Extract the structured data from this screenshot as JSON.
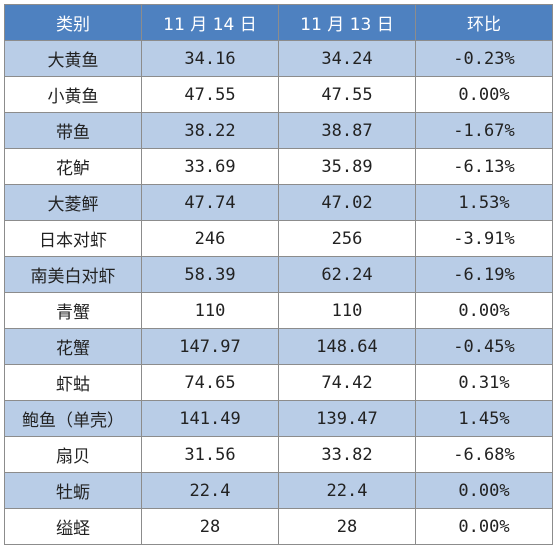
{
  "table": {
    "headers": [
      "类别",
      "11 月 14 日",
      "11 月 13 日",
      "环比"
    ],
    "rows": [
      {
        "category": "大黄鱼",
        "nov14": "34.16",
        "nov13": "34.24",
        "change": "-0.23%"
      },
      {
        "category": "小黄鱼",
        "nov14": "47.55",
        "nov13": "47.55",
        "change": "0.00%"
      },
      {
        "category": "带鱼",
        "nov14": "38.22",
        "nov13": "38.87",
        "change": "-1.67%"
      },
      {
        "category": "花鲈",
        "nov14": "33.69",
        "nov13": "35.89",
        "change": "-6.13%"
      },
      {
        "category": "大菱鲆",
        "nov14": "47.74",
        "nov13": "47.02",
        "change": "1.53%"
      },
      {
        "category": "日本对虾",
        "nov14": "246",
        "nov13": "256",
        "change": "-3.91%"
      },
      {
        "category": "南美白对虾",
        "nov14": "58.39",
        "nov13": "62.24",
        "change": "-6.19%"
      },
      {
        "category": "青蟹",
        "nov14": "110",
        "nov13": "110",
        "change": "0.00%"
      },
      {
        "category": "花蟹",
        "nov14": "147.97",
        "nov13": "148.64",
        "change": "-0.45%"
      },
      {
        "category": "虾蛄",
        "nov14": "74.65",
        "nov13": "74.42",
        "change": "0.31%"
      },
      {
        "category": "鲍鱼（单壳）",
        "nov14": "141.49",
        "nov13": "139.47",
        "change": "1.45%"
      },
      {
        "category": "扇贝",
        "nov14": "31.56",
        "nov13": "33.82",
        "change": "-6.68%"
      },
      {
        "category": "牡蛎",
        "nov14": "22.4",
        "nov13": "22.4",
        "change": "0.00%"
      },
      {
        "category": "缢蛏",
        "nov14": "28",
        "nov13": "28",
        "change": "0.00%"
      }
    ]
  },
  "colors": {
    "header_bg": "#4e81c0",
    "row_shaded_bg": "#b9cde7",
    "row_plain_bg": "#ffffff",
    "border": "#8c8c8c"
  }
}
